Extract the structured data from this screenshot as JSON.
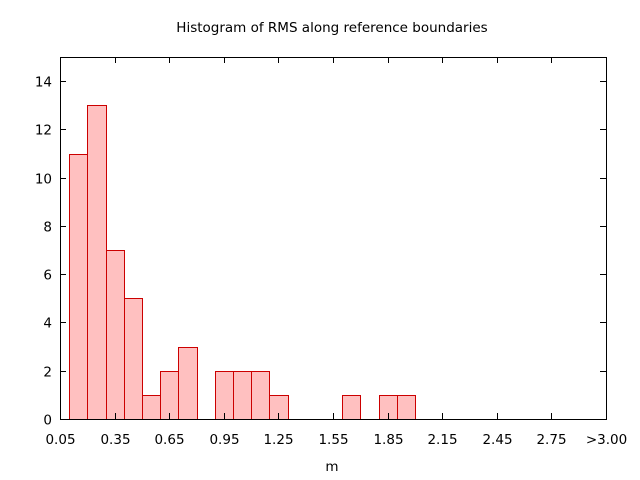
{
  "chart_data": {
    "type": "bar",
    "title": "Histogram of RMS along reference boundaries",
    "xlabel": "m",
    "ylabel": "",
    "ylim": [
      0,
      15
    ],
    "xlim": [
      0.05,
      3.05
    ],
    "bin_width": 0.1,
    "bins": [
      {
        "start": 0.1,
        "end": 0.2,
        "count": 11
      },
      {
        "start": 0.2,
        "end": 0.3,
        "count": 13
      },
      {
        "start": 0.3,
        "end": 0.4,
        "count": 7
      },
      {
        "start": 0.4,
        "end": 0.5,
        "count": 5
      },
      {
        "start": 0.5,
        "end": 0.6,
        "count": 1
      },
      {
        "start": 0.6,
        "end": 0.7,
        "count": 2
      },
      {
        "start": 0.7,
        "end": 0.8,
        "count": 3
      },
      {
        "start": 0.9,
        "end": 1.0,
        "count": 2
      },
      {
        "start": 1.0,
        "end": 1.1,
        "count": 2
      },
      {
        "start": 1.1,
        "end": 1.2,
        "count": 2
      },
      {
        "start": 1.2,
        "end": 1.3,
        "count": 1
      },
      {
        "start": 1.6,
        "end": 1.7,
        "count": 1
      },
      {
        "start": 1.8,
        "end": 1.9,
        "count": 1
      },
      {
        "start": 1.9,
        "end": 2.0,
        "count": 1
      }
    ],
    "x_ticks": [
      {
        "value": 0.05,
        "label": "0.05"
      },
      {
        "value": 0.35,
        "label": "0.35"
      },
      {
        "value": 0.65,
        "label": "0.65"
      },
      {
        "value": 0.95,
        "label": "0.95"
      },
      {
        "value": 1.25,
        "label": "1.25"
      },
      {
        "value": 1.55,
        "label": "1.55"
      },
      {
        "value": 1.85,
        "label": "1.85"
      },
      {
        "value": 2.15,
        "label": "2.15"
      },
      {
        "value": 2.45,
        "label": "2.45"
      },
      {
        "value": 2.75,
        "label": "2.75"
      },
      {
        "value": 3.05,
        "label": ">3.00"
      }
    ],
    "y_ticks": [
      0,
      2,
      4,
      6,
      8,
      10,
      12,
      14
    ],
    "grid": false,
    "colors": {
      "bar_fill": "#ffc0c0",
      "bar_stroke": "#cc0000",
      "axis": "#000000"
    }
  }
}
